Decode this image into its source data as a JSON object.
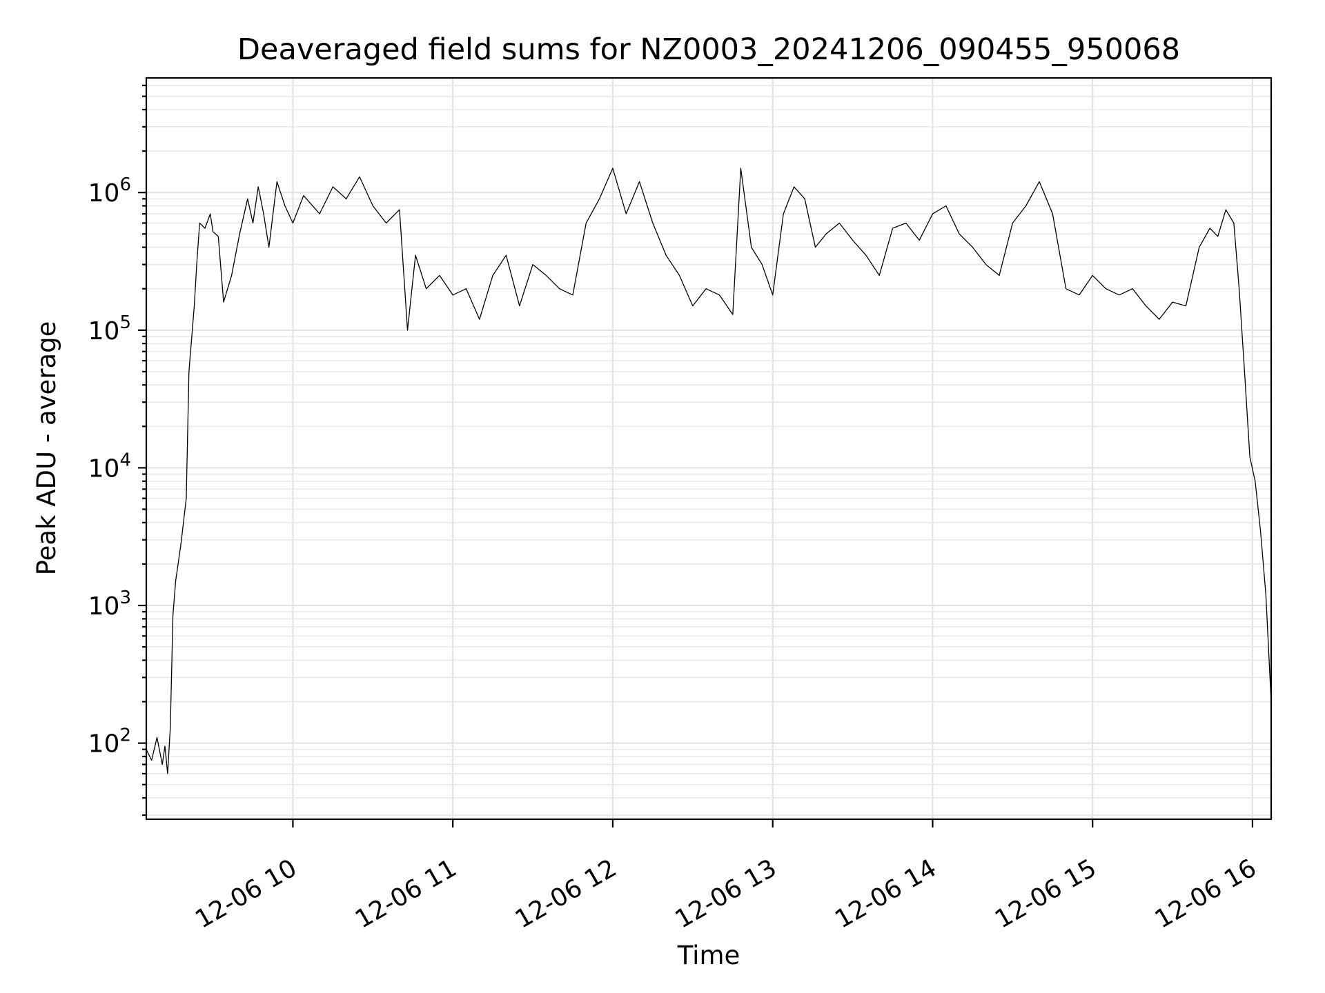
{
  "chart_data": {
    "type": "line",
    "title": "Deaveraged field sums for NZ0003_20241206_090455_950068",
    "xlabel": "Time",
    "ylabel": "Peak ADU - average",
    "y_scale": "log",
    "ylim": [
      28,
      6800000
    ],
    "xlim": [
      "2024-12-06 09:05",
      "2024-12-06 16:07"
    ],
    "grid": true,
    "x_tick_labels": [
      "12-06 10",
      "12-06 11",
      "12-06 12",
      "12-06 13",
      "12-06 14",
      "12-06 15",
      "12-06 16"
    ],
    "x_tick_values": [
      "2024-12-06 10:00",
      "2024-12-06 11:00",
      "2024-12-06 12:00",
      "2024-12-06 13:00",
      "2024-12-06 14:00",
      "2024-12-06 15:00",
      "2024-12-06 16:00"
    ],
    "y_tick_labels": [
      {
        "base": "10",
        "exp": "2",
        "value": 100
      },
      {
        "base": "10",
        "exp": "3",
        "value": 1000
      },
      {
        "base": "10",
        "exp": "4",
        "value": 10000
      },
      {
        "base": "10",
        "exp": "5",
        "value": 100000
      },
      {
        "base": "10",
        "exp": "6",
        "value": 1000000
      }
    ],
    "series": [
      {
        "color": "#000000",
        "x": [
          "2024-12-06 09:05",
          "2024-12-06 09:07",
          "2024-12-06 09:09",
          "2024-12-06 09:11",
          "2024-12-06 09:12",
          "2024-12-06 09:13",
          "2024-12-06 09:14",
          "2024-12-06 09:15",
          "2024-12-06 09:16",
          "2024-12-06 09:18",
          "2024-12-06 09:20",
          "2024-12-06 09:21",
          "2024-12-06 09:23",
          "2024-12-06 09:24",
          "2024-12-06 09:25",
          "2024-12-06 09:27",
          "2024-12-06 09:29",
          "2024-12-06 09:30",
          "2024-12-06 09:32",
          "2024-12-06 09:34",
          "2024-12-06 09:37",
          "2024-12-06 09:40",
          "2024-12-06 09:43",
          "2024-12-06 09:45",
          "2024-12-06 09:47",
          "2024-12-06 09:49",
          "2024-12-06 09:51",
          "2024-12-06 09:54",
          "2024-12-06 09:57",
          "2024-12-06 10:00",
          "2024-12-06 10:04",
          "2024-12-06 10:10",
          "2024-12-06 10:15",
          "2024-12-06 10:20",
          "2024-12-06 10:25",
          "2024-12-06 10:30",
          "2024-12-06 10:35",
          "2024-12-06 10:40",
          "2024-12-06 10:43",
          "2024-12-06 10:46",
          "2024-12-06 10:50",
          "2024-12-06 10:55",
          "2024-12-06 11:00",
          "2024-12-06 11:05",
          "2024-12-06 11:10",
          "2024-12-06 11:15",
          "2024-12-06 11:20",
          "2024-12-06 11:25",
          "2024-12-06 11:30",
          "2024-12-06 11:35",
          "2024-12-06 11:40",
          "2024-12-06 11:45",
          "2024-12-06 11:50",
          "2024-12-06 11:55",
          "2024-12-06 12:00",
          "2024-12-06 12:05",
          "2024-12-06 12:10",
          "2024-12-06 12:15",
          "2024-12-06 12:20",
          "2024-12-06 12:25",
          "2024-12-06 12:30",
          "2024-12-06 12:35",
          "2024-12-06 12:40",
          "2024-12-06 12:45",
          "2024-12-06 12:48",
          "2024-12-06 12:52",
          "2024-12-06 12:56",
          "2024-12-06 13:00",
          "2024-12-06 13:04",
          "2024-12-06 13:08",
          "2024-12-06 13:12",
          "2024-12-06 13:16",
          "2024-12-06 13:20",
          "2024-12-06 13:25",
          "2024-12-06 13:30",
          "2024-12-06 13:35",
          "2024-12-06 13:40",
          "2024-12-06 13:45",
          "2024-12-06 13:50",
          "2024-12-06 13:55",
          "2024-12-06 14:00",
          "2024-12-06 14:05",
          "2024-12-06 14:10",
          "2024-12-06 14:15",
          "2024-12-06 14:20",
          "2024-12-06 14:25",
          "2024-12-06 14:30",
          "2024-12-06 14:35",
          "2024-12-06 14:40",
          "2024-12-06 14:45",
          "2024-12-06 14:50",
          "2024-12-06 14:55",
          "2024-12-06 15:00",
          "2024-12-06 15:05",
          "2024-12-06 15:10",
          "2024-12-06 15:15",
          "2024-12-06 15:20",
          "2024-12-06 15:25",
          "2024-12-06 15:30",
          "2024-12-06 15:35",
          "2024-12-06 15:40",
          "2024-12-06 15:44",
          "2024-12-06 15:47",
          "2024-12-06 15:50",
          "2024-12-06 15:53",
          "2024-12-06 15:55",
          "2024-12-06 15:57",
          "2024-12-06 15:59",
          "2024-12-06 16:01",
          "2024-12-06 16:03",
          "2024-12-06 16:05",
          "2024-12-06 16:07"
        ],
        "y": [
          90,
          75,
          110,
          70,
          95,
          60,
          130,
          850,
          1500,
          2800,
          6000,
          50000,
          150000,
          320000,
          600000,
          550000,
          700000,
          520000,
          480000,
          160000,
          250000,
          500000,
          900000,
          600000,
          1100000,
          700000,
          400000,
          1200000,
          800000,
          600000,
          950000,
          700000,
          1100000,
          900000,
          1300000,
          800000,
          600000,
          750000,
          100000,
          350000,
          200000,
          250000,
          180000,
          200000,
          120000,
          250000,
          350000,
          150000,
          300000,
          250000,
          200000,
          180000,
          600000,
          900000,
          1500000,
          700000,
          1200000,
          600000,
          350000,
          250000,
          150000,
          200000,
          180000,
          130000,
          1500000,
          400000,
          300000,
          180000,
          700000,
          1100000,
          900000,
          400000,
          500000,
          600000,
          450000,
          350000,
          250000,
          550000,
          600000,
          450000,
          700000,
          800000,
          500000,
          400000,
          300000,
          250000,
          600000,
          800000,
          1200000,
          700000,
          200000,
          180000,
          250000,
          200000,
          180000,
          200000,
          150000,
          120000,
          160000,
          150000,
          400000,
          550000,
          480000,
          750000,
          600000,
          200000,
          50000,
          12000,
          8000,
          3500,
          1200,
          200
        ]
      }
    ]
  }
}
